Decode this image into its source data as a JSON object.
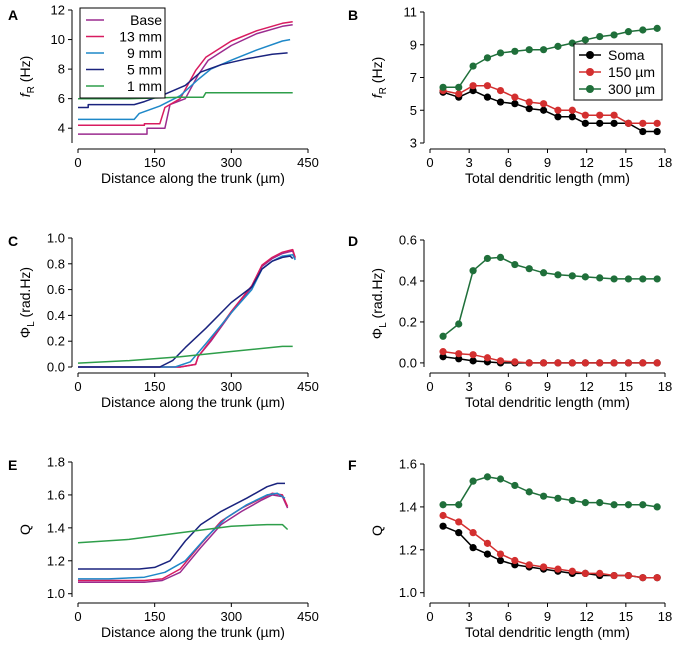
{
  "chart_data": [
    {
      "panel": "A",
      "type": "line",
      "xlabel": "Distance along the trunk (µm)",
      "ylabel": "fR (Hz)",
      "ylabel_main": "f",
      "ylabel_sub": "R",
      "ylabel_unit": " (Hz)",
      "xlim": [
        0,
        450
      ],
      "ylim": [
        3,
        12
      ],
      "xticks": [
        0,
        150,
        300,
        450
      ],
      "yticks": [
        4,
        6,
        8,
        10,
        12
      ],
      "legend": {
        "position": "top-left"
      },
      "series": [
        {
          "name": "Base",
          "color": "#9b2b8f",
          "x": [
            0,
            135,
            135,
            170,
            180,
            210,
            235,
            255,
            300,
            350,
            400,
            420
          ],
          "y": [
            3.6,
            3.6,
            4.0,
            4.0,
            5.6,
            6.0,
            7.6,
            8.6,
            9.6,
            10.4,
            10.9,
            11.0
          ]
        },
        {
          "name": "13 mm",
          "color": "#d81b60",
          "x": [
            0,
            130,
            130,
            160,
            170,
            200,
            230,
            250,
            300,
            350,
            400,
            420
          ],
          "y": [
            4.2,
            4.2,
            4.3,
            4.3,
            5.4,
            6.0,
            7.9,
            8.8,
            9.9,
            10.6,
            11.1,
            11.2
          ]
        },
        {
          "name": "9 mm",
          "color": "#1e88c8",
          "x": [
            0,
            55,
            55,
            110,
            120,
            160,
            200,
            235,
            260,
            300,
            350,
            400,
            415
          ],
          "y": [
            4.6,
            4.6,
            4.6,
            4.6,
            5.0,
            5.5,
            6.2,
            7.3,
            8.0,
            8.6,
            9.3,
            9.9,
            10.0
          ]
        },
        {
          "name": "5 mm",
          "color": "#1a237e",
          "x": [
            0,
            20,
            20,
            110,
            130,
            170,
            210,
            240,
            280,
            330,
            380,
            410
          ],
          "y": [
            5.4,
            5.4,
            5.6,
            5.6,
            5.8,
            6.3,
            6.9,
            7.8,
            8.3,
            8.7,
            9.0,
            9.1
          ]
        },
        {
          "name": "1 mm",
          "color": "#2e9e4a",
          "x": [
            0,
            100,
            200,
            245,
            250,
            300,
            360,
            420
          ],
          "y": [
            6.0,
            6.0,
            6.1,
            6.1,
            6.4,
            6.4,
            6.4,
            6.4
          ]
        }
      ]
    },
    {
      "panel": "B",
      "type": "line",
      "xlabel": "Total dendritic length (mm)",
      "ylabel": "fR (Hz)",
      "ylabel_main": "f",
      "ylabel_sub": "R",
      "ylabel_unit": " (Hz)",
      "xlim": [
        0,
        18
      ],
      "ylim": [
        3,
        11
      ],
      "xticks": [
        0,
        3,
        6,
        9,
        12,
        15,
        18
      ],
      "yticks": [
        3,
        5,
        7,
        9,
        11
      ],
      "legend": {
        "position": "center-right"
      },
      "x": [
        1.0,
        2.2,
        3.3,
        4.4,
        5.4,
        6.5,
        7.6,
        8.7,
        9.8,
        10.9,
        11.9,
        13.0,
        14.1,
        15.2,
        16.3,
        17.4
      ],
      "series": [
        {
          "name": "Soma",
          "color": "#000000",
          "values": [
            6.1,
            5.8,
            6.2,
            5.8,
            5.5,
            5.4,
            5.1,
            5.0,
            4.6,
            4.6,
            4.2,
            4.2,
            4.2,
            4.2,
            3.7,
            3.7
          ]
        },
        {
          "name": "150 µm",
          "color": "#d32f2f",
          "values": [
            6.2,
            6.0,
            6.5,
            6.5,
            6.2,
            5.8,
            5.5,
            5.4,
            5.0,
            5.0,
            4.7,
            4.7,
            4.7,
            4.2,
            4.2,
            4.2
          ]
        },
        {
          "name": "300 µm",
          "color": "#1f6f3a",
          "values": [
            6.4,
            6.4,
            7.7,
            8.2,
            8.5,
            8.6,
            8.7,
            8.7,
            8.9,
            9.1,
            9.3,
            9.5,
            9.6,
            9.8,
            9.9,
            10.0
          ]
        }
      ]
    },
    {
      "panel": "C",
      "type": "line",
      "xlabel": "Distance along the trunk (µm)",
      "ylabel": "ΦL (rad.Hz)",
      "ylabel_main": "Φ",
      "ylabel_sub": "L",
      "ylabel_unit": " (rad.Hz)",
      "xlim": [
        0,
        450
      ],
      "ylim": [
        0,
        1.0
      ],
      "xticks": [
        0,
        150,
        300,
        450
      ],
      "yticks": [
        0.0,
        0.2,
        0.4,
        0.6,
        0.8,
        1.0
      ],
      "tick_decimals": 1,
      "series": [
        {
          "name": "Base",
          "color": "#9b2b8f",
          "x": [
            0,
            200,
            230,
            235,
            260,
            300,
            340,
            360,
            380,
            400,
            420,
            425
          ],
          "y": [
            0,
            0,
            0.02,
            0.08,
            0.2,
            0.42,
            0.62,
            0.78,
            0.84,
            0.88,
            0.9,
            0.84
          ]
        },
        {
          "name": "13 mm",
          "color": "#d81b60",
          "x": [
            0,
            200,
            230,
            235,
            260,
            300,
            340,
            360,
            380,
            400,
            420,
            425
          ],
          "y": [
            0,
            0,
            0.02,
            0.08,
            0.21,
            0.43,
            0.63,
            0.79,
            0.85,
            0.89,
            0.91,
            0.85
          ]
        },
        {
          "name": "9 mm",
          "color": "#1e88c8",
          "x": [
            0,
            190,
            220,
            250,
            300,
            340,
            360,
            380,
            400,
            420,
            425
          ],
          "y": [
            0,
            0,
            0.04,
            0.18,
            0.42,
            0.6,
            0.76,
            0.82,
            0.86,
            0.87,
            0.83
          ]
        },
        {
          "name": "5 mm",
          "color": "#1a237e",
          "x": [
            0,
            160,
            185,
            210,
            250,
            300,
            340,
            360,
            380,
            400,
            415,
            420
          ],
          "y": [
            0,
            0,
            0.05,
            0.15,
            0.3,
            0.5,
            0.62,
            0.76,
            0.82,
            0.85,
            0.86,
            0.84
          ]
        },
        {
          "name": "1 mm",
          "color": "#2e9e4a",
          "x": [
            0,
            100,
            200,
            300,
            400,
            420
          ],
          "y": [
            0.03,
            0.05,
            0.08,
            0.12,
            0.16,
            0.16
          ]
        }
      ]
    },
    {
      "panel": "D",
      "type": "line",
      "xlabel": "Total dendritic length (mm)",
      "ylabel": "ΦL (rad.Hz)",
      "ylabel_main": "Φ",
      "ylabel_sub": "L",
      "ylabel_unit": " (rad.Hz)",
      "xlim": [
        0,
        18
      ],
      "ylim": [
        -0.02,
        0.6
      ],
      "xticks": [
        0,
        3,
        6,
        9,
        12,
        15,
        18
      ],
      "yticks": [
        0.0,
        0.2,
        0.4,
        0.6
      ],
      "tick_decimals": 1,
      "x": [
        1.0,
        2.2,
        3.3,
        4.4,
        5.4,
        6.5,
        7.6,
        8.7,
        9.8,
        10.9,
        11.9,
        13.0,
        14.1,
        15.2,
        16.3,
        17.4
      ],
      "series": [
        {
          "name": "Soma",
          "color": "#000000",
          "values": [
            0.03,
            0.02,
            0.01,
            0.005,
            0.0,
            0.0,
            0.0,
            0.0,
            0.0,
            0.0,
            0.0,
            0.0,
            0.0,
            0.0,
            0.0,
            0.0
          ]
        },
        {
          "name": "150 µm",
          "color": "#d32f2f",
          "values": [
            0.055,
            0.045,
            0.04,
            0.025,
            0.01,
            0.005,
            0.0,
            0.0,
            0.0,
            0.0,
            0.0,
            0.0,
            0.0,
            0.0,
            0.0,
            0.0
          ]
        },
        {
          "name": "300 µm",
          "color": "#1f6f3a",
          "values": [
            0.13,
            0.19,
            0.45,
            0.51,
            0.515,
            0.48,
            0.46,
            0.44,
            0.43,
            0.425,
            0.42,
            0.415,
            0.41,
            0.41,
            0.41,
            0.41
          ]
        }
      ]
    },
    {
      "panel": "E",
      "type": "line",
      "xlabel": "Distance along the trunk (µm)",
      "ylabel": "Q",
      "ylabel_main": "Q",
      "ylabel_sub": "",
      "ylabel_unit": "",
      "xlim": [
        0,
        450
      ],
      "ylim": [
        0.98,
        1.8
      ],
      "xticks": [
        0,
        150,
        300,
        450
      ],
      "yticks": [
        1.0,
        1.2,
        1.4,
        1.6,
        1.8
      ],
      "tick_decimals": 1,
      "series": [
        {
          "name": "Base",
          "color": "#9b2b8f",
          "x": [
            0,
            130,
            165,
            200,
            240,
            280,
            320,
            360,
            380,
            400,
            410
          ],
          "y": [
            1.07,
            1.07,
            1.08,
            1.13,
            1.28,
            1.42,
            1.5,
            1.57,
            1.6,
            1.59,
            1.52
          ]
        },
        {
          "name": "13 mm",
          "color": "#d81b60",
          "x": [
            0,
            130,
            165,
            200,
            240,
            280,
            320,
            360,
            380,
            400,
            410
          ],
          "y": [
            1.08,
            1.08,
            1.09,
            1.15,
            1.3,
            1.44,
            1.52,
            1.58,
            1.61,
            1.6,
            1.53
          ]
        },
        {
          "name": "9 mm",
          "color": "#1e88c8",
          "x": [
            0,
            60,
            130,
            170,
            210,
            250,
            290,
            330,
            370,
            390,
            405
          ],
          "y": [
            1.09,
            1.09,
            1.1,
            1.13,
            1.2,
            1.34,
            1.46,
            1.54,
            1.6,
            1.61,
            1.58
          ]
        },
        {
          "name": "5 mm",
          "color": "#1a237e",
          "x": [
            0,
            120,
            150,
            180,
            210,
            240,
            280,
            330,
            370,
            390,
            405
          ],
          "y": [
            1.15,
            1.15,
            1.16,
            1.2,
            1.32,
            1.42,
            1.5,
            1.58,
            1.65,
            1.67,
            1.67
          ]
        },
        {
          "name": "1 mm",
          "color": "#2e9e4a",
          "x": [
            0,
            100,
            200,
            300,
            370,
            400,
            410
          ],
          "y": [
            1.31,
            1.33,
            1.37,
            1.41,
            1.42,
            1.42,
            1.39
          ]
        }
      ]
    },
    {
      "panel": "F",
      "type": "line",
      "xlabel": "Total dendritic length (mm)",
      "ylabel": "Q",
      "ylabel_main": "Q",
      "ylabel_sub": "",
      "ylabel_unit": "",
      "xlim": [
        0,
        18
      ],
      "ylim": [
        0.98,
        1.6
      ],
      "xticks": [
        0,
        3,
        6,
        9,
        12,
        15,
        18
      ],
      "yticks": [
        1.0,
        1.2,
        1.4,
        1.6
      ],
      "tick_decimals": 1,
      "x": [
        1.0,
        2.2,
        3.3,
        4.4,
        5.4,
        6.5,
        7.6,
        8.7,
        9.8,
        10.9,
        11.9,
        13.0,
        14.1,
        15.2,
        16.3,
        17.4
      ],
      "series": [
        {
          "name": "Soma",
          "color": "#000000",
          "values": [
            1.31,
            1.28,
            1.21,
            1.18,
            1.15,
            1.13,
            1.12,
            1.11,
            1.1,
            1.09,
            1.09,
            1.08,
            1.08,
            1.08,
            1.07,
            1.07
          ]
        },
        {
          "name": "150 µm",
          "color": "#d32f2f",
          "values": [
            1.36,
            1.33,
            1.28,
            1.23,
            1.18,
            1.15,
            1.13,
            1.12,
            1.11,
            1.1,
            1.09,
            1.09,
            1.08,
            1.08,
            1.07,
            1.07
          ]
        },
        {
          "name": "300 µm",
          "color": "#1f6f3a",
          "values": [
            1.41,
            1.41,
            1.52,
            1.54,
            1.53,
            1.5,
            1.47,
            1.45,
            1.44,
            1.43,
            1.42,
            1.42,
            1.41,
            1.41,
            1.41,
            1.4
          ]
        }
      ]
    }
  ]
}
